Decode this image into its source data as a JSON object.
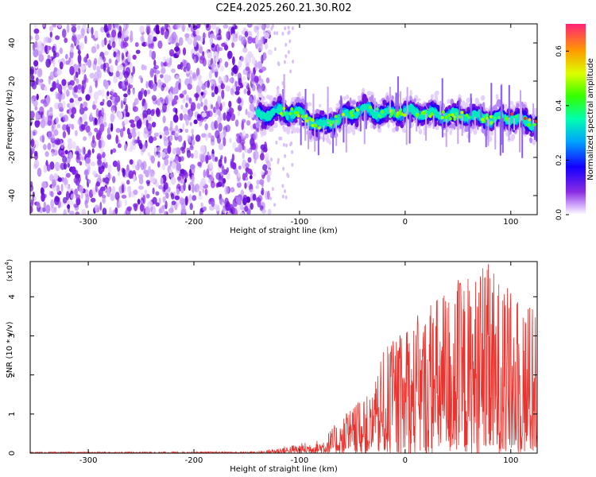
{
  "title": "C2E4.2025.260.21.30.R02",
  "chart_data": [
    {
      "type": "heatmap",
      "name": "spectrogram",
      "xlabel": "Height of straight line (km)",
      "ylabel": "Frequency (Hz)",
      "xlim": [
        -355,
        125
      ],
      "ylim": [
        -50,
        50
      ],
      "xticks": [
        -300,
        -200,
        -100,
        0,
        100
      ],
      "yticks": [
        -40,
        -20,
        0,
        20,
        40
      ],
      "xtick_labels": [
        "-300",
        "-200",
        "-100",
        "0",
        "100"
      ],
      "ytick_labels": [
        "-40",
        "-20",
        "0",
        "20",
        "40"
      ],
      "noise_region_x": [
        -355,
        -128
      ],
      "signal_center_freq": [
        {
          "x": -140,
          "f": 2
        },
        {
          "x": -120,
          "f": 4
        },
        {
          "x": -100,
          "f": 3
        },
        {
          "x": -80,
          "f": -4
        },
        {
          "x": -60,
          "f": 1
        },
        {
          "x": -40,
          "f": 5
        },
        {
          "x": -20,
          "f": 3
        },
        {
          "x": 0,
          "f": 4
        },
        {
          "x": 20,
          "f": 3
        },
        {
          "x": 40,
          "f": 2
        },
        {
          "x": 60,
          "f": 2
        },
        {
          "x": 80,
          "f": 0
        },
        {
          "x": 100,
          "f": 1
        },
        {
          "x": 125,
          "f": -3
        }
      ],
      "colorbar": {
        "label": "Normalized spectral amplitude",
        "range": [
          0,
          0.7
        ],
        "ticks": [
          0.0,
          0.2,
          0.4,
          0.6
        ],
        "tick_labels": [
          "0.0",
          "0.2",
          "0.4",
          "0.6"
        ]
      }
    },
    {
      "type": "line",
      "name": "snr",
      "xlabel": "Height of straight line (km)",
      "ylabel": "SNR (10 * v/v)",
      "scale_label": "(x10",
      "scale_exp": "4",
      "scale_close": ")",
      "xlim": [
        -355,
        125
      ],
      "ylim": [
        0,
        4.9
      ],
      "xticks": [
        -300,
        -200,
        -100,
        0,
        100
      ],
      "yticks": [
        0,
        1,
        2,
        3,
        4
      ],
      "xtick_labels": [
        "-300",
        "-200",
        "-100",
        "0",
        "100"
      ],
      "ytick_labels": [
        "0",
        "1",
        "2",
        "3",
        "4"
      ],
      "color": "#e8332e",
      "envelope": [
        {
          "x": -355,
          "y": 0.03
        },
        {
          "x": -140,
          "y": 0.04
        },
        {
          "x": -110,
          "y": 0.2
        },
        {
          "x": -80,
          "y": 0.35
        },
        {
          "x": -50,
          "y": 1.2
        },
        {
          "x": -30,
          "y": 1.6
        },
        {
          "x": -20,
          "y": 2.7
        },
        {
          "x": 0,
          "y": 3.2
        },
        {
          "x": 30,
          "y": 4.1
        },
        {
          "x": 50,
          "y": 4.5
        },
        {
          "x": 80,
          "y": 4.85
        },
        {
          "x": 100,
          "y": 4.2
        },
        {
          "x": 125,
          "y": 3.8
        }
      ]
    }
  ]
}
